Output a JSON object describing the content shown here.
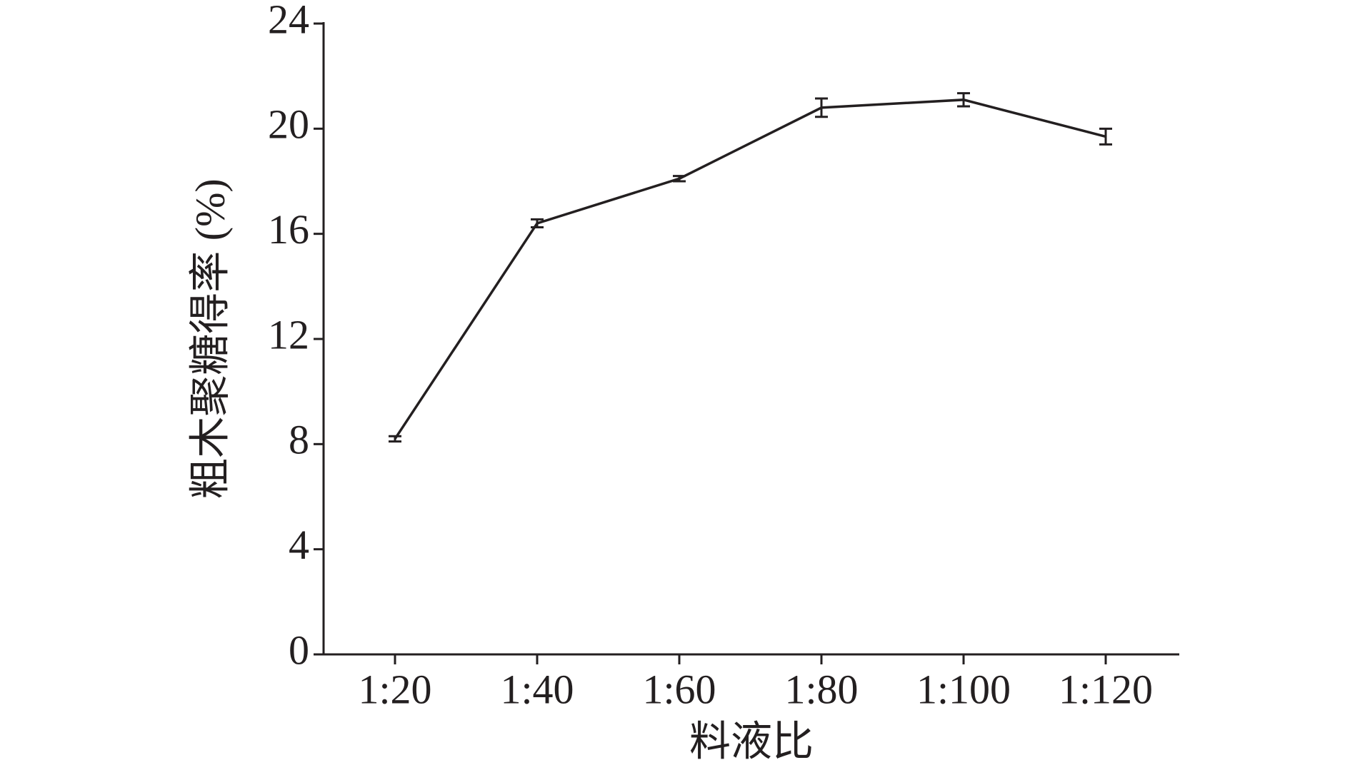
{
  "chart_data": {
    "type": "line",
    "xlabel": "料液比",
    "ylabel": "粗木聚糖得率 (%)",
    "categories": [
      "1:20",
      "1:40",
      "1:60",
      "1:80",
      "1:100",
      "1:120"
    ],
    "values": [
      8.2,
      16.4,
      18.1,
      20.8,
      21.1,
      19.7
    ],
    "errors": [
      0.1,
      0.15,
      0.1,
      0.35,
      0.25,
      0.3
    ],
    "color": "#231f20",
    "ylim": [
      0,
      24
    ],
    "yticks": [
      0,
      4,
      8,
      12,
      16,
      20,
      24
    ],
    "grid": false
  }
}
